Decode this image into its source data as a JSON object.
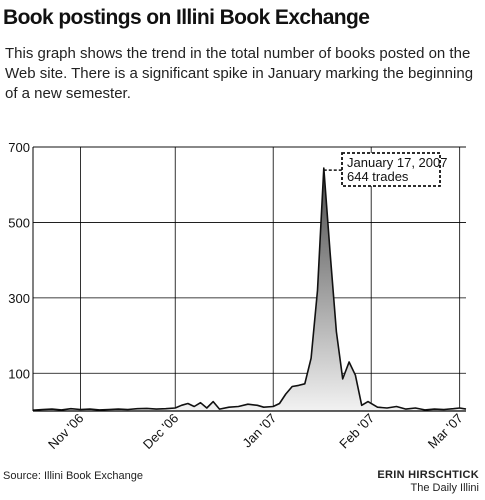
{
  "header": {
    "title": "Book postings on Illini Book Exchange",
    "subtitle": "This graph shows the trend in the total number of books posted on the Web site.  There is a significant spike in January marking the beginning of a new semester."
  },
  "footer": {
    "source": "Source:  Illini Book Exchange",
    "author": "ERIN HIRSCHTICK",
    "publication": "The Daily Illini"
  },
  "chart_data": {
    "type": "area",
    "title": "Book postings on Illini Book Exchange",
    "xlabel": "",
    "ylabel": "",
    "ylim": [
      0,
      700
    ],
    "xlim": [
      "2006-10-17",
      "2007-03-03"
    ],
    "grid": true,
    "y_ticks": [
      100,
      300,
      500,
      700
    ],
    "x_ticks": [
      {
        "date": "2006-11-01",
        "label": "Nov '06"
      },
      {
        "date": "2006-12-01",
        "label": "Dec '06"
      },
      {
        "date": "2007-01-01",
        "label": "Jan '07"
      },
      {
        "date": "2007-02-01",
        "label": "Feb '07"
      },
      {
        "date": "2007-03-01",
        "label": "Mar '07"
      }
    ],
    "colors": {
      "line": "#111111",
      "fill_top": "#4a4a4a",
      "fill_bottom": "#f2f2f2",
      "grid": "#000000"
    },
    "x": [
      "2006-10-17",
      "2006-10-20",
      "2006-10-23",
      "2006-10-26",
      "2006-10-29",
      "2006-11-01",
      "2006-11-04",
      "2006-11-07",
      "2006-11-10",
      "2006-11-13",
      "2006-11-16",
      "2006-11-19",
      "2006-11-22",
      "2006-11-25",
      "2006-11-28",
      "2006-12-01",
      "2006-12-03",
      "2006-12-05",
      "2006-12-07",
      "2006-12-09",
      "2006-12-11",
      "2006-12-13",
      "2006-12-15",
      "2006-12-18",
      "2006-12-21",
      "2006-12-24",
      "2006-12-27",
      "2006-12-29",
      "2007-01-01",
      "2007-01-03",
      "2007-01-05",
      "2007-01-07",
      "2007-01-09",
      "2007-01-11",
      "2007-01-13",
      "2007-01-15",
      "2007-01-17",
      "2007-01-19",
      "2007-01-21",
      "2007-01-23",
      "2007-01-25",
      "2007-01-27",
      "2007-01-29",
      "2007-01-31",
      "2007-02-03",
      "2007-02-06",
      "2007-02-09",
      "2007-02-12",
      "2007-02-15",
      "2007-02-18",
      "2007-02-21",
      "2007-02-24",
      "2007-02-27",
      "2007-03-01",
      "2007-03-03"
    ],
    "series": [
      {
        "values": [
          2,
          4,
          5,
          3,
          6,
          4,
          5,
          3,
          4,
          5,
          4,
          6,
          7,
          5,
          6,
          8,
          15,
          20,
          12,
          22,
          8,
          25,
          5,
          10,
          12,
          18,
          15,
          10,
          12,
          20,
          45,
          65,
          68,
          72,
          140,
          320,
          644,
          420,
          210,
          85,
          130,
          95,
          15,
          25,
          10,
          8,
          12,
          5,
          8,
          3,
          5,
          4,
          6,
          8,
          5
        ]
      }
    ],
    "annotation": {
      "text": [
        "January 17, 2007",
        "644 trades"
      ],
      "x": "2007-01-17",
      "y": 644
    }
  }
}
